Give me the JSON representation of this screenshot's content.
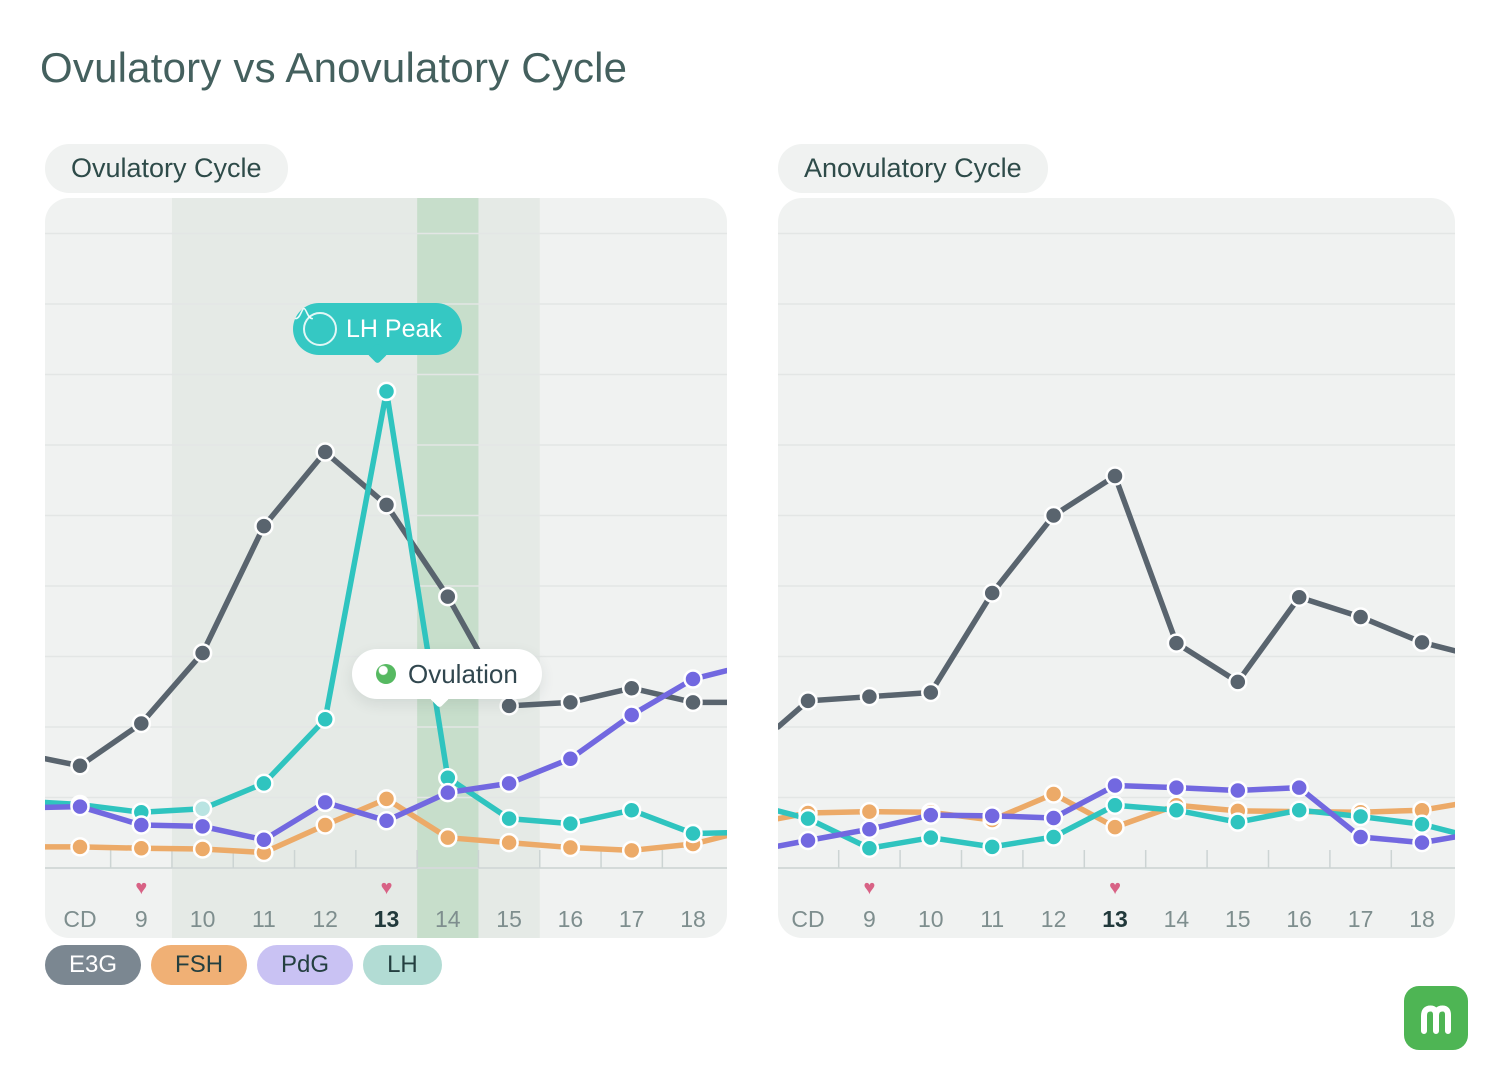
{
  "title": "Ovulatory vs Anovulatory Cycle",
  "annotations": {
    "lh_peak": {
      "label": "LH Peak",
      "day": "13",
      "color": "#35c8c3",
      "icon": "bell-curve-icon"
    },
    "ovulation": {
      "label": "Ovulation",
      "day": "14",
      "dot_color": "#56b961"
    }
  },
  "axis": {
    "labels": [
      "CD",
      "9",
      "10",
      "11",
      "12",
      "13",
      "14",
      "15",
      "16",
      "17",
      "18"
    ],
    "bold_label": "13",
    "heart_days": [
      "9",
      "13"
    ],
    "heart_color": "#d86285",
    "label_color": "#7e8e8e",
    "bold_label_color": "#21393b"
  },
  "legend": {
    "items": [
      {
        "label": "E3G",
        "bg": "#7b8791",
        "text": "#ffffff"
      },
      {
        "label": "FSH",
        "bg": "#f0b075",
        "text": "#243f40"
      },
      {
        "label": "PdG",
        "bg": "#c9c2f3",
        "text": "#243f40"
      },
      {
        "label": "LH",
        "bg": "#b2dcd4",
        "text": "#243f40"
      }
    ]
  },
  "logo": {
    "glyph": "m",
    "bg_color": "#4eb554"
  },
  "chart_data": [
    {
      "type": "line",
      "title": "Ovulatory Cycle",
      "categories": [
        "CD",
        "9",
        "10",
        "11",
        "12",
        "13",
        "14",
        "15",
        "16",
        "17",
        "18"
      ],
      "ylim": [
        0,
        9.5
      ],
      "grid": true,
      "highlight_bands": [
        {
          "type": "fertile-window",
          "from_day": "10",
          "to_day": "15",
          "color": "#9db8a6",
          "opacity": 0.13
        },
        {
          "type": "ovulation-day",
          "day": "14",
          "color": "#79c084",
          "opacity": 0.28
        }
      ],
      "series": [
        {
          "name": "E3G",
          "color": "#59646e",
          "values": [
            1.45,
            2.05,
            3.05,
            4.85,
            5.9,
            5.15,
            3.85,
            2.3,
            2.35,
            2.55,
            2.35
          ],
          "edge_start": 1.55,
          "edge_end": 2.35
        },
        {
          "name": "FSH",
          "color": "#ecaa68",
          "values": [
            0.3,
            0.28,
            0.27,
            0.22,
            0.61,
            0.98,
            0.43,
            0.36,
            0.29,
            0.25,
            0.34
          ],
          "edge_start": 0.3,
          "edge_end": 0.46
        },
        {
          "name": "LH",
          "color": "#2fc4bf",
          "values": [
            0.9,
            0.79,
            0.84,
            1.2,
            2.11,
            6.76,
            1.28,
            0.7,
            0.63,
            0.82,
            0.49
          ],
          "edge_start": 0.93,
          "edge_end": 0.5,
          "light_dot_index": 2,
          "light_dot_color": "#b9e4e2"
        },
        {
          "name": "PdG",
          "color": "#7268e0",
          "values": [
            0.87,
            0.61,
            0.59,
            0.4,
            0.93,
            0.67,
            1.07,
            1.2,
            1.55,
            2.17,
            2.68
          ],
          "edge_start": 0.86,
          "edge_end": 2.8
        }
      ]
    },
    {
      "type": "line",
      "title": "Anovulatory Cycle",
      "categories": [
        "CD",
        "9",
        "10",
        "11",
        "12",
        "13",
        "14",
        "15",
        "16",
        "17",
        "18"
      ],
      "ylim": [
        0,
        9.5
      ],
      "grid": true,
      "highlight_bands": [],
      "series": [
        {
          "name": "E3G",
          "color": "#59646e",
          "values": [
            2.37,
            2.43,
            2.49,
            3.9,
            5.0,
            5.56,
            3.19,
            2.64,
            3.84,
            3.56,
            3.2
          ],
          "edge_start": 2.0,
          "edge_end": 3.08
        },
        {
          "name": "FSH",
          "color": "#ecaa68",
          "values": [
            0.78,
            0.8,
            0.79,
            0.68,
            1.05,
            0.58,
            0.89,
            0.81,
            0.8,
            0.79,
            0.82
          ],
          "edge_start": 0.7,
          "edge_end": 0.9
        },
        {
          "name": "LH",
          "color": "#2fc4bf",
          "values": [
            0.7,
            0.28,
            0.43,
            0.3,
            0.44,
            0.89,
            0.82,
            0.65,
            0.82,
            0.73,
            0.62
          ],
          "edge_start": 0.81,
          "edge_end": 0.5
        },
        {
          "name": "PdG",
          "color": "#7268e0",
          "values": [
            0.39,
            0.55,
            0.75,
            0.74,
            0.71,
            1.17,
            1.14,
            1.1,
            1.14,
            0.44,
            0.36
          ],
          "edge_start": 0.31,
          "edge_end": 0.44
        }
      ]
    }
  ]
}
